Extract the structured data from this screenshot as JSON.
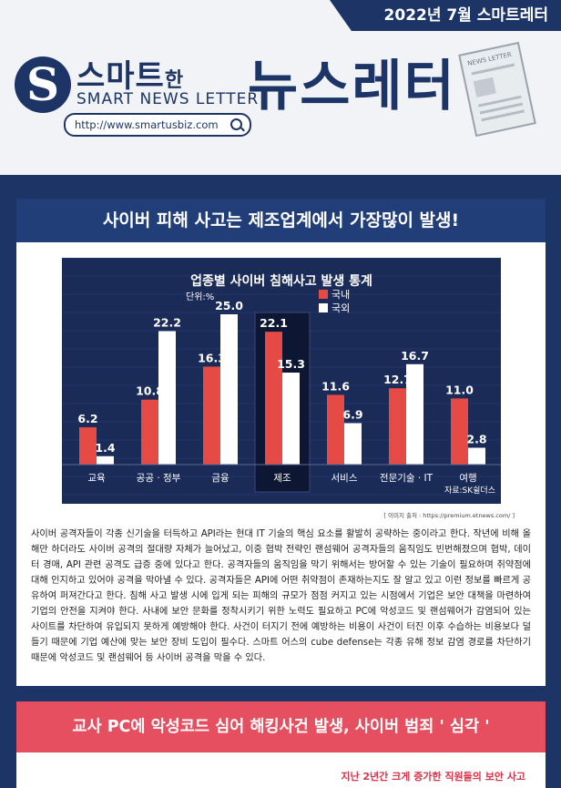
{
  "header": {
    "date": "2022년 7월 스마트레터",
    "logo_letter": "S",
    "logo_ko": "스마트",
    "logo_ko_suffix": "한",
    "logo_en": "SMART NEWS LETTER",
    "url": "http://www.smartusbiz.com",
    "title": "뉴스레터",
    "paper_label": "NEWS LETTER"
  },
  "article1": {
    "title": "사이버 피해 사고는 제조업계에서 가장많이 발생!",
    "source": "[ 이미지 출처 : https://premium.etnews.com/ ]",
    "body": "사이버 공격자들이 각종 신기술을 터득하고 API라는 현대 IT 기술의 핵심 요소를 활발히 공략하는 중이라고 한다. 작년에 비해 올해만 하더라도 사이버 공격의 절대량 자체가 늘어났고, 이중 협박 전략인 랜섬웨어 공격자들의 움직임도 빈번해졌으며 협박, 데이터 경매, API 관련 공격도 급증 중에 있다고 한다. 공격자들의 움직임을 막기 위해서는 방어할 수 있는 기술이 필요하며 취약점에 대해 인지하고 있어야 공격을 막아낼 수 있다. 공격자들은 API에 어떤 취약점이 존재하는지도 잘 알고 있고 이런 정보를 빠르게 공유하여 퍼져간다고 한다. 침해 사고 발생 시에 입게 되는 피해의 규모가 점점 커지고 있는 시점에서 기업은 보안 대책을 마련하여 기업의 안전을 지켜야 한다. 사내에 보안 문화를 정착시키기 위한 노력도 필요하고 PC에 악성코드 및 랜섬웨어가 감염되어 있는 사이트를 차단하여 유입되지 못하게 예방해야 한다. 사건이 터지기 전에 예방하는 비용이 사건이 터진 이후 수습하는 비용보다 덜 들기 때문에 기업 예산에 맞는 보안 장비 도입이 필수다. 스마트 어스의 cube defense는 각종 유해 정보 감염 경로를 차단하기 때문에 악성코드 및 랜섬웨어 등 사이버 공격을 막을 수 있다."
  },
  "chart_data": {
    "type": "bar",
    "title": "업종별 사이버 침해사고 발생 통계",
    "unit": "단위:%",
    "categories": [
      "교육",
      "공공 · 정부",
      "금융",
      "제조",
      "서비스",
      "전문기술 · IT",
      "여행"
    ],
    "series": [
      {
        "name": "국내",
        "color": "#e64a45",
        "values": [
          6.2,
          10.8,
          16.3,
          22.1,
          11.6,
          12.7,
          11.0
        ]
      },
      {
        "name": "국외",
        "color": "#ffffff",
        "values": [
          1.4,
          22.2,
          25.0,
          15.3,
          6.9,
          16.7,
          2.8
        ]
      }
    ],
    "highlight_category": "제조",
    "credit": "자료:SK쉴더스",
    "ylim": [
      0,
      25
    ]
  },
  "article2": {
    "title": "교사 PC에 악성코드 심어 해킹사건 발생, 사이버 범죄 ' 심각 '",
    "subheading": "지난 2년간 크게 증가한 직원들의 보안 사고"
  }
}
